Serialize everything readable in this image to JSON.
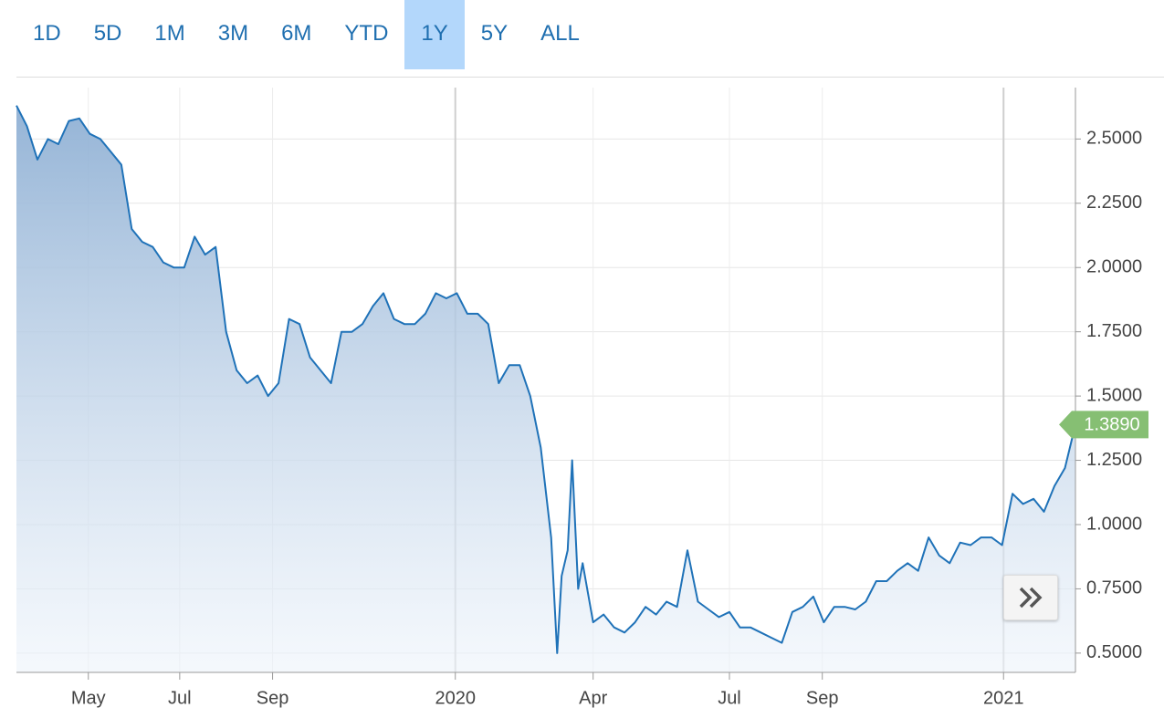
{
  "ranges": [
    "1D",
    "5D",
    "1M",
    "3M",
    "6M",
    "YTD",
    "1Y",
    "5Y",
    "ALL"
  ],
  "selected_index": 6,
  "chart_data": {
    "type": "line",
    "color": "#1f72b8",
    "x": [
      0,
      7,
      14,
      21,
      28,
      35,
      42,
      49,
      56,
      63,
      70,
      77,
      84,
      91,
      98,
      105,
      112,
      119,
      126,
      133,
      140,
      147,
      154,
      161,
      168,
      175,
      182,
      189,
      196,
      203,
      210,
      217,
      224,
      231,
      238,
      245,
      252,
      259,
      266,
      273,
      280,
      287,
      294,
      301,
      308,
      315,
      322,
      329,
      336,
      343,
      350,
      357,
      361,
      364,
      368,
      371,
      375,
      378,
      385,
      392,
      399,
      406,
      413,
      420,
      427,
      434,
      441,
      448,
      455,
      462,
      469,
      476,
      483,
      490,
      497,
      504,
      511,
      518,
      525,
      532,
      539,
      546,
      553,
      560,
      567,
      574,
      581,
      588,
      595,
      602,
      609,
      616,
      623,
      630,
      637,
      644,
      651,
      658,
      665,
      672,
      679,
      686,
      693,
      700,
      707
    ],
    "values": [
      2.63,
      2.55,
      2.42,
      2.5,
      2.48,
      2.57,
      2.58,
      2.52,
      2.5,
      2.45,
      2.4,
      2.15,
      2.1,
      2.08,
      2.02,
      2.0,
      2.0,
      2.12,
      2.05,
      2.08,
      1.75,
      1.6,
      1.55,
      1.58,
      1.5,
      1.55,
      1.8,
      1.78,
      1.65,
      1.6,
      1.55,
      1.75,
      1.75,
      1.78,
      1.85,
      1.9,
      1.8,
      1.78,
      1.78,
      1.82,
      1.9,
      1.88,
      1.9,
      1.82,
      1.82,
      1.78,
      1.55,
      1.62,
      1.62,
      1.5,
      1.3,
      0.95,
      0.5,
      0.8,
      0.9,
      1.25,
      0.75,
      0.85,
      0.62,
      0.65,
      0.6,
      0.58,
      0.62,
      0.68,
      0.65,
      0.7,
      0.68,
      0.9,
      0.7,
      0.67,
      0.64,
      0.66,
      0.6,
      0.6,
      0.58,
      0.56,
      0.54,
      0.66,
      0.68,
      0.72,
      0.62,
      0.68,
      0.68,
      0.67,
      0.7,
      0.78,
      0.78,
      0.82,
      0.85,
      0.82,
      0.95,
      0.88,
      0.85,
      0.93,
      0.92,
      0.95,
      0.95,
      0.92,
      1.12,
      1.08,
      1.1,
      1.05,
      1.15,
      1.22,
      1.389
    ],
    "xlim": [
      0,
      707
    ],
    "xticks": [
      {
        "value": 48,
        "label": "May"
      },
      {
        "value": 109,
        "label": "Jul"
      },
      {
        "value": 171,
        "label": "Sep"
      },
      {
        "value": 293,
        "label": "2020"
      },
      {
        "value": 385,
        "label": "Apr"
      },
      {
        "value": 476,
        "label": "Jul"
      },
      {
        "value": 538,
        "label": "Sep"
      },
      {
        "value": 659,
        "label": "2021"
      }
    ],
    "ylim": [
      0.425,
      2.7
    ],
    "yticks": [
      {
        "value": 0.5,
        "label": "0.5000"
      },
      {
        "value": 0.75,
        "label": "0.7500"
      },
      {
        "value": 1,
        "label": "1.0000"
      },
      {
        "value": 1.25,
        "label": "1.2500"
      },
      {
        "value": 1.5,
        "label": "1.5000"
      },
      {
        "value": 1.75,
        "label": "1.7500"
      },
      {
        "value": 2,
        "label": "2.0000"
      },
      {
        "value": 2.25,
        "label": "2.2500"
      },
      {
        "value": 2.5,
        "label": "2.5000"
      }
    ],
    "grid": true,
    "last_price": {
      "value": 1.389,
      "label": "1.3890",
      "color": "#86bf73"
    }
  }
}
